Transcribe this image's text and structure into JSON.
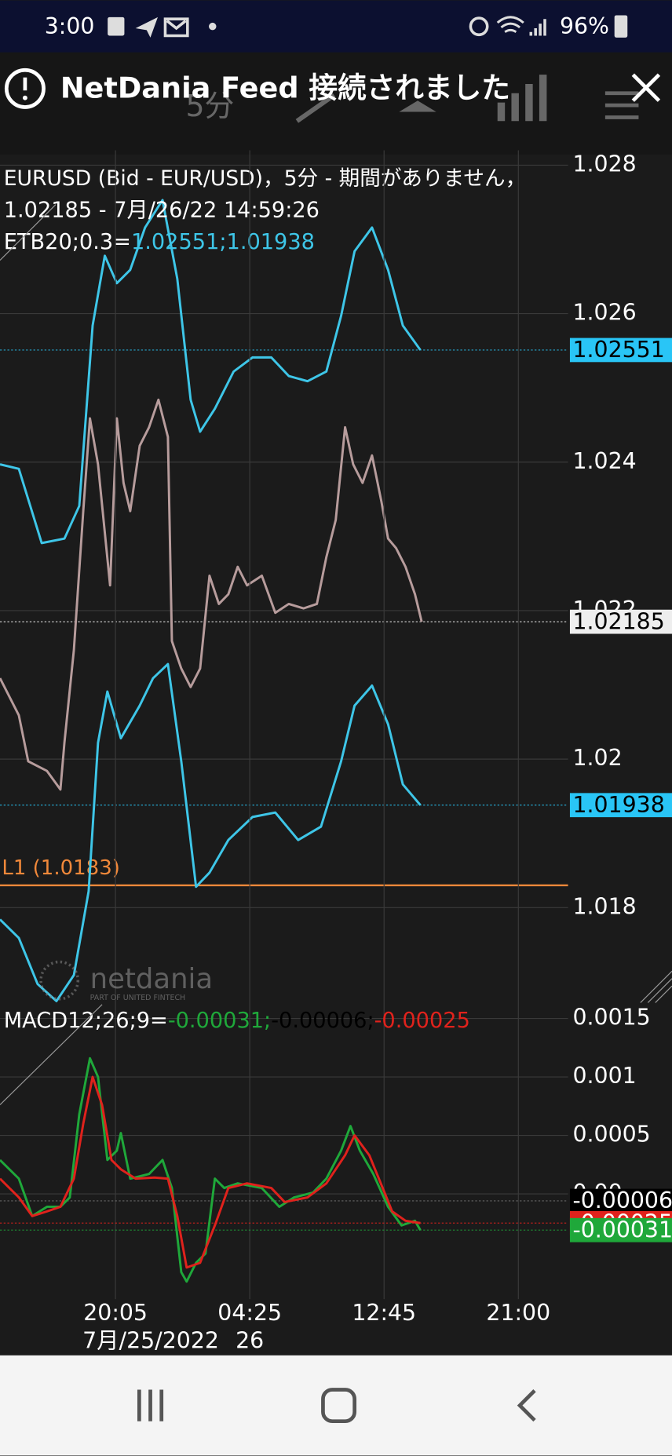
{
  "status_bar": {
    "time": "3:00",
    "battery": "96%"
  },
  "notification": {
    "text": "NetDania Feed 接続されました"
  },
  "toolbar": {
    "interval": "5分"
  },
  "watermark": {
    "brand": "netdania",
    "tagline": "PART OF UNITED FINTECH"
  },
  "chart_data": [
    {
      "type": "line",
      "title": "EURUSD (Bid - EUR/USD)，5分 - 期間がありません，",
      "subtitle": "1.02185 - 7月/26/22 14:59:26",
      "indicator_label": "ETB20;0.3=",
      "indicator_values": "1.02551;1.01938",
      "indicator_color": "#3ec6e8",
      "xlim": [
        -86,
        337
      ],
      "ylim": [
        1.0167,
        1.0282
      ],
      "yticks": [
        1.018,
        1.02,
        1.022,
        1.024,
        1.026,
        1.028
      ],
      "grid": true,
      "series": [
        {
          "color": "#3ec6e8",
          "x": [
            -86,
            -72,
            -55,
            -38,
            -27,
            -17,
            -8,
            1,
            11,
            22,
            35,
            46,
            56,
            63,
            74,
            88,
            102,
            116,
            129,
            143,
            157,
            168,
            178,
            191,
            203,
            214,
            227
          ],
          "values": [
            1.02397,
            1.02391,
            1.02291,
            1.02297,
            1.02341,
            1.02584,
            1.02678,
            1.02641,
            1.02659,
            1.02716,
            1.02753,
            1.02647,
            1.02484,
            1.02441,
            1.02472,
            1.02522,
            1.02541,
            1.02541,
            1.02516,
            1.02509,
            1.02522,
            1.02597,
            1.02684,
            1.02716,
            1.02659,
            1.02584,
            1.02551
          ]
        },
        {
          "color": "#3ec6e8",
          "x": [
            -86,
            -72,
            -58,
            -44,
            -31,
            -20,
            -13,
            -6,
            4,
            18,
            28,
            39,
            49,
            60,
            70,
            84,
            102,
            119,
            136,
            153,
            168,
            178,
            191,
            203,
            214,
            227
          ],
          "values": [
            1.01784,
            1.01759,
            1.01697,
            1.01674,
            1.01709,
            1.01822,
            1.02022,
            1.02091,
            1.02028,
            1.02072,
            1.02109,
            1.02128,
            1.01997,
            1.01828,
            1.01847,
            1.01891,
            1.01922,
            1.01928,
            1.01891,
            1.01909,
            1.01997,
            1.02072,
            1.02099,
            1.02047,
            1.01966,
            1.01938
          ]
        },
        {
          "color": "#b79c9c",
          "x": [
            -86,
            -72,
            -65,
            -51,
            -41,
            -38,
            -31,
            -24,
            -19,
            -13,
            -4,
            1,
            6,
            11,
            18,
            25,
            32,
            39,
            42,
            49,
            56,
            63,
            70,
            77,
            84,
            91,
            98,
            109,
            119,
            129,
            140,
            150,
            157,
            164,
            171,
            177,
            184,
            191,
            198,
            203,
            209,
            216,
            223,
            228
          ],
          "values": [
            1.02109,
            1.02059,
            1.01997,
            1.01984,
            1.01959,
            1.02022,
            1.02147,
            1.02334,
            1.02459,
            1.02397,
            1.02234,
            1.02459,
            1.02372,
            1.02334,
            1.02422,
            1.02447,
            1.02484,
            1.02434,
            1.02159,
            1.02122,
            1.02097,
            1.02122,
            1.02247,
            1.02209,
            1.02222,
            1.02259,
            1.02234,
            1.02247,
            1.02197,
            1.02209,
            1.02203,
            1.02209,
            1.02272,
            1.02322,
            1.02447,
            1.02397,
            1.02372,
            1.02409,
            1.02347,
            1.02297,
            1.02284,
            1.02259,
            1.02222,
            1.02185
          ]
        }
      ],
      "price_markers": [
        {
          "value": 1.02551,
          "color": "#29c5f6",
          "text_color": "#000000"
        },
        {
          "value": 1.02185,
          "color": "#eeeeee",
          "text_color": "#000000"
        },
        {
          "value": 1.01938,
          "color": "#29c5f6",
          "text_color": "#000000"
        }
      ],
      "level_line": {
        "label": "L1 (1.0183)",
        "value": 1.0183,
        "color": "#f0883a"
      }
    },
    {
      "type": "line",
      "title": "MACD12;26;9=",
      "title_values": [
        {
          "text": "-0.00031;",
          "color": "#1fa83a"
        },
        {
          "text": "-0.00006;",
          "color": "#000000"
        },
        {
          "text": "-0.00025",
          "color": "#e0221c"
        }
      ],
      "xlim": [
        -86,
        337
      ],
      "ylim": [
        -0.0009,
        0.00162
      ],
      "yticks": [
        {
          "value": 0,
          "label": "0.00"
        },
        0.0005,
        0.001,
        0.0015
      ],
      "xticks": [
        {
          "value": 0,
          "label": "20:05"
        },
        {
          "value": 100,
          "label": "04:25"
        },
        {
          "value": 200,
          "label": "12:45"
        },
        {
          "value": 300,
          "label": "21:00"
        }
      ],
      "date_labels": [
        "7月/25/2022",
        "26"
      ],
      "grid": true,
      "series": [
        {
          "color": "#1fa83a",
          "x": [
            -86,
            -72,
            -62,
            -51,
            -41,
            -34,
            -27,
            -19,
            -13,
            -6,
            1,
            4,
            11,
            25,
            35,
            42,
            49,
            53,
            60,
            67,
            74,
            81,
            91,
            109,
            122,
            133,
            147,
            157,
            168,
            175,
            182,
            192,
            203,
            213,
            223,
            227
          ],
          "values": [
            0.00029,
            0.00013,
            -0.00019,
            -0.00011,
            -0.00011,
            -3e-05,
            0.00068,
            0.00116,
            0.001,
            0.00029,
            0.00037,
            0.00052,
            0.00013,
            0.00017,
            0.00029,
            5e-05,
            -0.00067,
            -0.00075,
            -0.00059,
            -0.00051,
            0.00013,
            5e-05,
            9e-05,
            5e-05,
            -0.00011,
            -3e-05,
            1e-05,
            0.00013,
            0.00037,
            0.00058,
            0.00037,
            0.00017,
            -0.00011,
            -0.00027,
            -0.00023,
            -0.00031
          ]
        },
        {
          "color": "#e0221c",
          "x": [
            -86,
            -72,
            -62,
            -51,
            -41,
            -31,
            -24,
            -17,
            -10,
            -3,
            4,
            15,
            29,
            39,
            46,
            53,
            63,
            74,
            84,
            98,
            116,
            126,
            143,
            157,
            171,
            178,
            189,
            199,
            206,
            216,
            227
          ],
          "values": [
            0.00013,
            -3e-05,
            -0.00019,
            -0.00015,
            -0.00011,
            0.00013,
            0.0006,
            0.001,
            0.00076,
            0.00029,
            0.00021,
            0.00013,
            0.00014,
            0.00013,
            -0.00019,
            -0.00063,
            -0.00059,
            -0.00027,
            5e-05,
            9e-05,
            5e-05,
            -7e-05,
            -3e-05,
            9e-05,
            0.00033,
            0.0005,
            0.00033,
            5e-05,
            -0.00015,
            -0.00023,
            -0.00025
          ]
        }
      ],
      "price_markers": [
        {
          "value": -6e-05,
          "color": "#000000",
          "text_color": "#ffffff"
        },
        {
          "value": -0.00025,
          "color": "#e0221c",
          "text_color": "#ffffff"
        },
        {
          "value": -0.00031,
          "color": "#1fa83a",
          "text_color": "#ffffff"
        }
      ]
    }
  ]
}
